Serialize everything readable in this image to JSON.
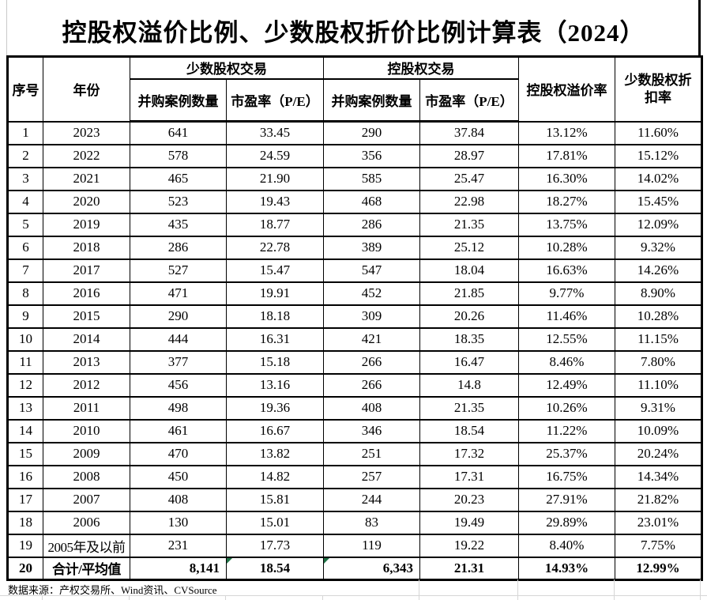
{
  "title": "控股权溢价比例、少数股权折价比例计算表（2024）",
  "header": {
    "col_index": "序号",
    "col_year": "年份",
    "group_minority": "少数股权交易",
    "group_controlling": "控股权交易",
    "col_minority_cases": "并购案例数量",
    "col_minority_pe": "市盈率（P/E）",
    "col_controlling_cases": "并购案例数量",
    "col_controlling_pe": "市盈率（P/E）",
    "col_premium": "控股权溢价率",
    "col_discount": "少数股权折扣率"
  },
  "rows": [
    {
      "no": "1",
      "year": "2023",
      "min_cases": "641",
      "min_pe": "33.45",
      "ctl_cases": "290",
      "ctl_pe": "37.84",
      "premium": "13.12%",
      "discount": "11.60%"
    },
    {
      "no": "2",
      "year": "2022",
      "min_cases": "578",
      "min_pe": "24.59",
      "ctl_cases": "356",
      "ctl_pe": "28.97",
      "premium": "17.81%",
      "discount": "15.12%"
    },
    {
      "no": "3",
      "year": "2021",
      "min_cases": "465",
      "min_pe": "21.90",
      "ctl_cases": "585",
      "ctl_pe": "25.47",
      "premium": "16.30%",
      "discount": "14.02%"
    },
    {
      "no": "4",
      "year": "2020",
      "min_cases": "523",
      "min_pe": "19.43",
      "ctl_cases": "468",
      "ctl_pe": "22.98",
      "premium": "18.27%",
      "discount": "15.45%"
    },
    {
      "no": "5",
      "year": "2019",
      "min_cases": "435",
      "min_pe": "18.77",
      "ctl_cases": "286",
      "ctl_pe": "21.35",
      "premium": "13.75%",
      "discount": "12.09%"
    },
    {
      "no": "6",
      "year": "2018",
      "min_cases": "286",
      "min_pe": "22.78",
      "ctl_cases": "389",
      "ctl_pe": "25.12",
      "premium": "10.28%",
      "discount": "9.32%"
    },
    {
      "no": "7",
      "year": "2017",
      "min_cases": "527",
      "min_pe": "15.47",
      "ctl_cases": "547",
      "ctl_pe": "18.04",
      "premium": "16.63%",
      "discount": "14.26%"
    },
    {
      "no": "8",
      "year": "2016",
      "min_cases": "471",
      "min_pe": "19.91",
      "ctl_cases": "452",
      "ctl_pe": "21.85",
      "premium": "9.77%",
      "discount": "8.90%"
    },
    {
      "no": "9",
      "year": "2015",
      "min_cases": "290",
      "min_pe": "18.18",
      "ctl_cases": "309",
      "ctl_pe": "20.26",
      "premium": "11.46%",
      "discount": "10.28%"
    },
    {
      "no": "10",
      "year": "2014",
      "min_cases": "444",
      "min_pe": "16.31",
      "ctl_cases": "421",
      "ctl_pe": "18.35",
      "premium": "12.55%",
      "discount": "11.15%"
    },
    {
      "no": "11",
      "year": "2013",
      "min_cases": "377",
      "min_pe": "15.18",
      "ctl_cases": "266",
      "ctl_pe": "16.47",
      "premium": "8.46%",
      "discount": "7.80%"
    },
    {
      "no": "12",
      "year": "2012",
      "min_cases": "456",
      "min_pe": "13.16",
      "ctl_cases": "266",
      "ctl_pe": "14.8",
      "premium": "12.49%",
      "discount": "11.10%"
    },
    {
      "no": "13",
      "year": "2011",
      "min_cases": "498",
      "min_pe": "19.36",
      "ctl_cases": "408",
      "ctl_pe": "21.35",
      "premium": "10.26%",
      "discount": "9.31%"
    },
    {
      "no": "14",
      "year": "2010",
      "min_cases": "461",
      "min_pe": "16.67",
      "ctl_cases": "346",
      "ctl_pe": "18.54",
      "premium": "11.22%",
      "discount": "10.09%"
    },
    {
      "no": "15",
      "year": "2009",
      "min_cases": "470",
      "min_pe": "13.82",
      "ctl_cases": "251",
      "ctl_pe": "17.32",
      "premium": "25.37%",
      "discount": "20.24%"
    },
    {
      "no": "16",
      "year": "2008",
      "min_cases": "450",
      "min_pe": "14.82",
      "ctl_cases": "257",
      "ctl_pe": "17.31",
      "premium": "16.75%",
      "discount": "14.34%"
    },
    {
      "no": "17",
      "year": "2007",
      "min_cases": "408",
      "min_pe": "15.81",
      "ctl_cases": "244",
      "ctl_pe": "20.23",
      "premium": "27.91%",
      "discount": "21.82%"
    },
    {
      "no": "18",
      "year": "2006",
      "min_cases": "130",
      "min_pe": "15.01",
      "ctl_cases": "83",
      "ctl_pe": "19.49",
      "premium": "29.89%",
      "discount": "23.01%"
    },
    {
      "no": "19",
      "year": "2005年及以前",
      "min_cases": "231",
      "min_pe": "17.73",
      "ctl_cases": "119",
      "ctl_pe": "19.22",
      "premium": "8.40%",
      "discount": "7.75%"
    },
    {
      "no": "20",
      "year": "合计/平均值",
      "min_cases": "8,141",
      "min_pe": "18.54",
      "ctl_cases": "6,343",
      "ctl_pe": "21.31",
      "premium": "14.93%",
      "discount": "12.99%"
    }
  ],
  "indicators": {
    "selected_cell_row_no": "9",
    "total_row_no": "20",
    "error_marker_fields_in_total_row": [
      "min_pe",
      "ctl_cases"
    ],
    "accent_green": "#1e7145"
  },
  "footer": {
    "source_note": "数据来源：产权交易所、Wind资讯、CVSource"
  }
}
